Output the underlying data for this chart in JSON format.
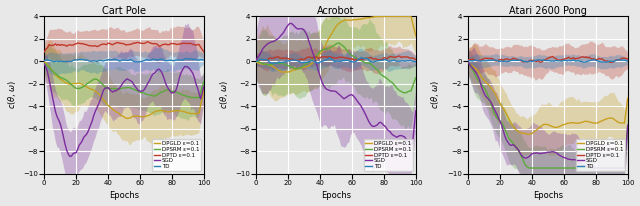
{
  "titles": [
    "Cart Pole",
    "Acrobot",
    "Atari 2600 Pong"
  ],
  "xlabel": "Epochs",
  "xlim": [
    0,
    100
  ],
  "ylim": [
    -10,
    4
  ],
  "yticks": [
    -10,
    -8,
    -6,
    -4,
    -2,
    0,
    2,
    4
  ],
  "xticks": [
    0,
    20,
    40,
    60,
    80,
    100
  ],
  "legend_labels": [
    "DPGLD ε=0.1",
    "DPSRM ε=0.1",
    "DPTD ε=0.1",
    "SGD",
    "TD"
  ],
  "colors": {
    "DPGLD": "#c8a020",
    "DPSRM": "#5aaa3c",
    "DPTD": "#c0392b",
    "SGD": "#7b2d9e",
    "TD": "#2980b9"
  },
  "bg_color": "#e8e8e8",
  "grid_color": "white",
  "alpha_fill": 0.3
}
